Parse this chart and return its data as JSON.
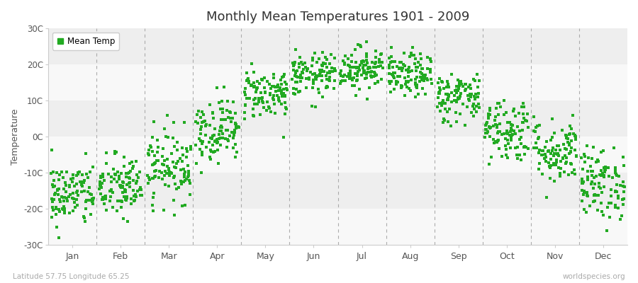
{
  "title": "Monthly Mean Temperatures 1901 - 2009",
  "ylabel": "Temperature",
  "ylim": [
    -30,
    30
  ],
  "ytick_labels": [
    "-30C",
    "-20C",
    "-10C",
    "0C",
    "10C",
    "20C",
    "30C"
  ],
  "ytick_values": [
    -30,
    -20,
    -10,
    0,
    10,
    20,
    30
  ],
  "months": [
    "Jan",
    "Feb",
    "Mar",
    "Apr",
    "May",
    "Jun",
    "Jul",
    "Aug",
    "Sep",
    "Oct",
    "Nov",
    "Dec"
  ],
  "dot_color": "#22aa22",
  "dot_size": 8,
  "figure_bg_color": "#ffffff",
  "plot_bg_color": "#ffffff",
  "band_color_even": "#eeeeee",
  "band_color_odd": "#f8f8f8",
  "dashed_line_color": "#999999",
  "legend_label": "Mean Temp",
  "footer_left": "Latitude 57.75 Longitude 65.25",
  "footer_right": "worldspecies.org",
  "mean_temps": [
    -16,
    -14,
    -8,
    2,
    12,
    17,
    19,
    17,
    11,
    2,
    -4,
    -13
  ],
  "temp_std": [
    4.5,
    4.5,
    5.0,
    4.5,
    3.5,
    3.0,
    3.0,
    3.0,
    3.5,
    4.5,
    4.5,
    5.0
  ],
  "n_years": 109
}
